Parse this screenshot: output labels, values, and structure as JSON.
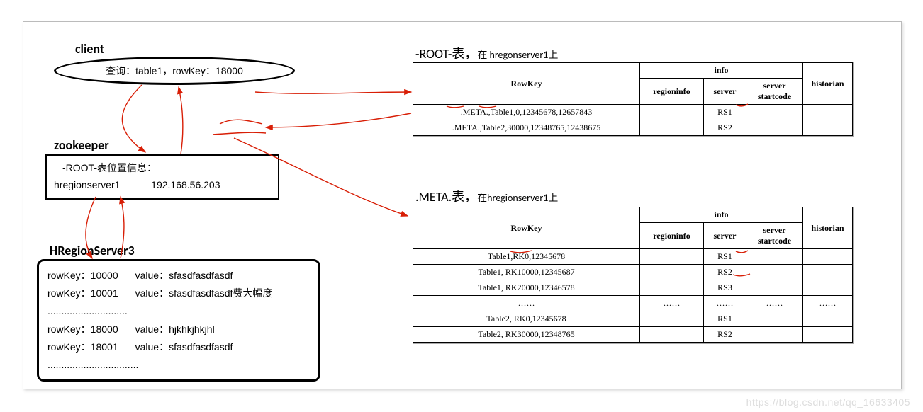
{
  "colors": {
    "outer_border": "#bbbbbb",
    "black": "#000000",
    "arrow_red": "#d81e06",
    "watermark": "#dddddd",
    "background": "#ffffff"
  },
  "client": {
    "label": "client",
    "query_text": "查询：table1，rowKey：18000"
  },
  "zookeeper": {
    "label": "zookeeper",
    "line1": "-ROOT-表位置信息：",
    "line2_left": "hregionserver1",
    "line2_right": "192.168.56.203"
  },
  "hregionserver": {
    "label": "HRegionServer3",
    "rows": [
      {
        "key": "rowKey：10000",
        "val": "value：sfasdfasdfasdf"
      },
      {
        "key": "rowKey：10001",
        "val": "value：sfasdfasdfasdf费大幅度"
      },
      {
        "key": ".............................",
        "val": ""
      },
      {
        "key": "rowKey：18000",
        "val": "value：hjkhkjhkjhl"
      },
      {
        "key": "rowKey：18001",
        "val": "value：sfasdfasdfasdf"
      },
      {
        "key": ".................................",
        "val": ""
      }
    ]
  },
  "root_table": {
    "title_main": "-ROOT-表，",
    "title_sub": "在 hregonserver1上",
    "columns": {
      "rowkey": "RowKey",
      "info": "info",
      "regioninfo": "regioninfo",
      "server": "server",
      "server_startcode": "server startcode",
      "historian": "historian"
    },
    "col_widths": {
      "rowkey": 320,
      "regioninfo": 90,
      "server": 60,
      "startcode": 80,
      "historian": 70
    },
    "rows": [
      {
        "rowkey": ".META.,Table1,0,12345678,12657843",
        "regioninfo": "",
        "server": "RS1",
        "startcode": "",
        "historian": ""
      },
      {
        "rowkey": ".META.,Table2,30000,12348765,12438675",
        "regioninfo": "",
        "server": "RS2",
        "startcode": "",
        "historian": ""
      }
    ]
  },
  "meta_table": {
    "title_main": ".META.表，",
    "title_sub": "在hregionserver1上",
    "columns": {
      "rowkey": "RowKey",
      "info": "info",
      "regioninfo": "regioninfo",
      "server": "server",
      "server_startcode": "server startcode",
      "historian": "historian"
    },
    "col_widths": {
      "rowkey": 320,
      "regioninfo": 90,
      "server": 60,
      "startcode": 80,
      "historian": 70
    },
    "rows": [
      {
        "rowkey": "Table1,RK0,12345678",
        "regioninfo": "",
        "server": "RS1",
        "startcode": "",
        "historian": ""
      },
      {
        "rowkey": "Table1, RK10000,12345687",
        "regioninfo": "",
        "server": "RS2",
        "startcode": "",
        "historian": ""
      },
      {
        "rowkey": "Table1, RK20000,12346578",
        "regioninfo": "",
        "server": "RS3",
        "startcode": "",
        "historian": ""
      },
      {
        "rowkey": "……",
        "regioninfo": "……",
        "server": "……",
        "startcode": "……",
        "historian": "……"
      },
      {
        "rowkey": "Table2, RK0,12345678",
        "regioninfo": "",
        "server": "RS1",
        "startcode": "",
        "historian": ""
      },
      {
        "rowkey": "Table2, RK30000,12348765",
        "regioninfo": "",
        "server": "RS2",
        "startcode": "",
        "historian": ""
      }
    ]
  },
  "watermark": "https://blog.csdn.net/qq_16633405"
}
